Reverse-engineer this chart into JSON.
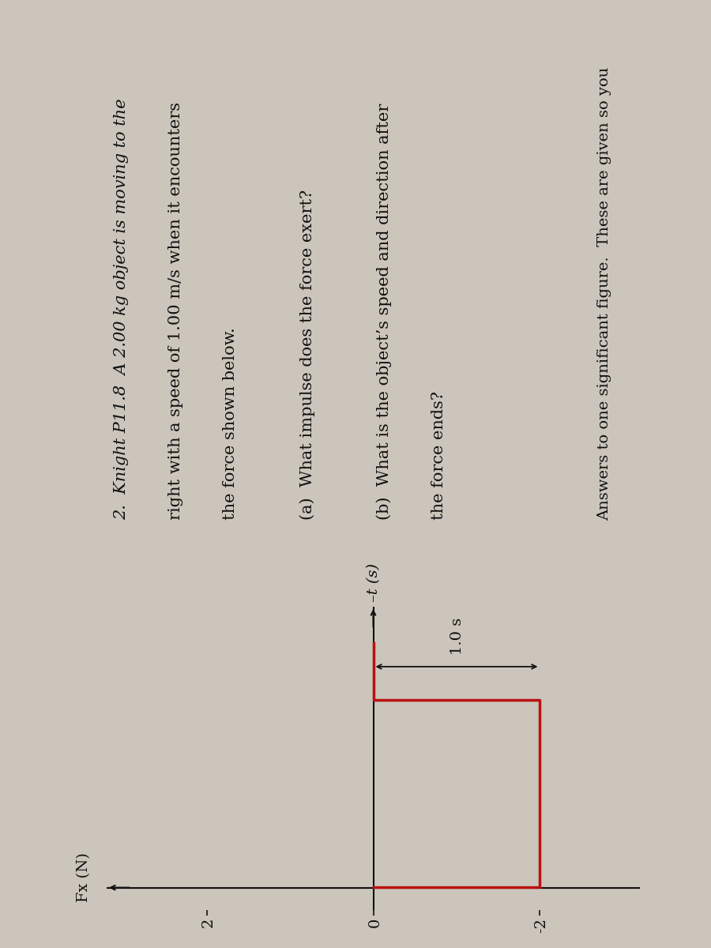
{
  "bg_color": "#cbc5bb",
  "title_line1": "2.  Knight P11.8  A 2.00 kg object is moving to the",
  "title_line2": "right with a speed of 1.00 m/s when it encounters",
  "title_line3": "the force shown below.",
  "part_a": "(a)  What impulse does the force exert?",
  "part_b_line1": "(b)  What is the object’s speed and direction after",
  "part_b_line2": "the force ends?",
  "ylabel": "Fx (N)",
  "xlabel": "t (s)",
  "ytick_labels": [
    "2",
    "0",
    "-2"
  ],
  "ytick_values": [
    2,
    0,
    -2
  ],
  "annotation": "1.0 s",
  "footer": "Answers to one significant figure.  These are given so you",
  "graph_color": "#bb1111",
  "axis_color": "#111111",
  "text_color": "#111111",
  "font_size_body": 15,
  "font_size_axis_label": 14,
  "font_size_tick": 14,
  "font_size_footer": 14,
  "graph_linewidth": 2.5,
  "axis_linewidth": 1.5,
  "rotate_degrees": 90
}
